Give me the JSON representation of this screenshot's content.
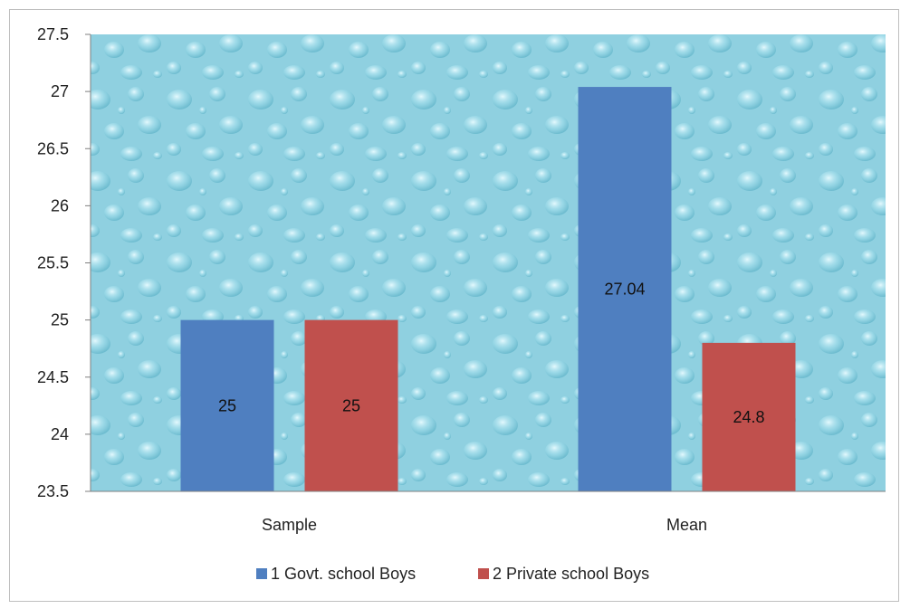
{
  "chart_data": {
    "type": "bar",
    "title": "",
    "xlabel": "",
    "ylabel": "",
    "categories": [
      "Sample",
      "Mean"
    ],
    "series": [
      {
        "name": "1 Govt. school Boys",
        "values": [
          25,
          27.04
        ],
        "color": "#4f7fc0"
      },
      {
        "name": "2 Private school Boys",
        "values": [
          25,
          24.8
        ],
        "color": "#c0504d"
      }
    ],
    "data_labels": [
      [
        "25",
        "27.04"
      ],
      [
        "25",
        "24.8"
      ]
    ],
    "ylim": [
      23.5,
      27.5
    ],
    "yticks": [
      "27.5",
      "27",
      "26.5",
      "26",
      "25.5",
      "25",
      "24.5",
      "24",
      "23.5"
    ],
    "grid": false,
    "legend": "bottom",
    "background": "water-droplet texture",
    "plot_bg_color": "#8fd0e0"
  }
}
